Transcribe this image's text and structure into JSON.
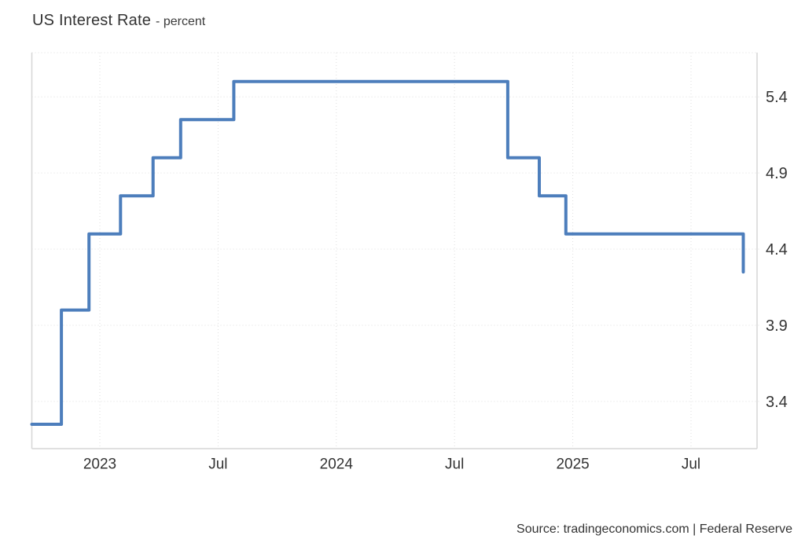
{
  "header": {
    "title": "US Interest Rate",
    "subtitle": "- percent"
  },
  "footer": {
    "source": "Source: tradingeconomics.com | Federal Reserve"
  },
  "chart_data": {
    "type": "line",
    "step_mode": "after",
    "title": "US Interest Rate",
    "ylabel": "percent",
    "legend": "none",
    "grid": "dotted",
    "series": [
      {
        "name": "US Interest Rate",
        "points": [
          {
            "date": "2022-09",
            "month": -3.45,
            "value": 3.25
          },
          {
            "date": "2022-11",
            "month": -1.95,
            "value": 4.0
          },
          {
            "date": "2022-12",
            "month": -0.55,
            "value": 4.5
          },
          {
            "date": "2023-02",
            "month": 1.05,
            "value": 4.75
          },
          {
            "date": "2023-03",
            "month": 2.7,
            "value": 5.0
          },
          {
            "date": "2023-05",
            "month": 4.1,
            "value": 5.25
          },
          {
            "date": "2023-07",
            "month": 6.8,
            "value": 5.5
          },
          {
            "date": "2024-09",
            "month": 20.7,
            "value": 5.0
          },
          {
            "date": "2024-11",
            "month": 22.3,
            "value": 4.75
          },
          {
            "date": "2024-12",
            "month": 23.65,
            "value": 4.5
          },
          {
            "date": "2025-09",
            "month": 32.65,
            "value": 4.25
          }
        ]
      }
    ],
    "y_axis": {
      "side": "right",
      "min": 3.09,
      "max": 5.69,
      "ticks": [
        5.4,
        4.9,
        4.4,
        3.9,
        3.4
      ]
    },
    "x_axis": {
      "min_month": -3.45,
      "max_month": 33.35,
      "ticks": [
        {
          "label": "2023",
          "month": 0
        },
        {
          "label": "Jul",
          "month": 6
        },
        {
          "label": "2024",
          "month": 12
        },
        {
          "label": "Jul",
          "month": 18
        },
        {
          "label": "2025",
          "month": 24
        },
        {
          "label": "Jul",
          "month": 30
        }
      ]
    },
    "colors": {
      "line": "#4d7ebc",
      "grid": "#dedede",
      "axis": "#d6d6d6",
      "text": "#333333"
    }
  }
}
